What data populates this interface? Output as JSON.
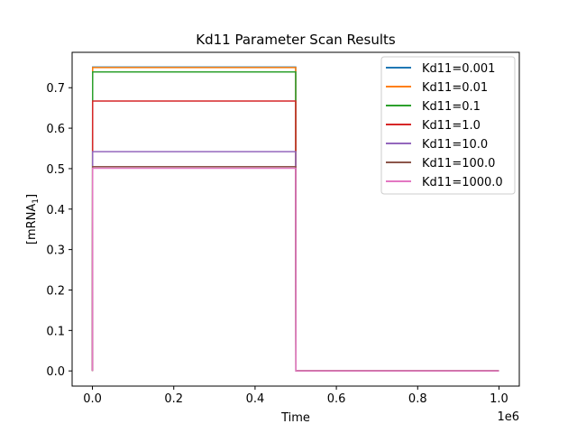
{
  "chart_data": {
    "type": "line",
    "title": "Kd11 Parameter Scan Results",
    "xlabel": "Time",
    "ylabel": "[mRNA",
    "ylabel_subscript": "1",
    "ylabel_suffix": "]",
    "x_offset_label": "1e6",
    "xlim": [
      -0.05,
      1.05
    ],
    "ylim": [
      -0.0375,
      0.7875
    ],
    "x_ticks": [
      0.0,
      0.2,
      0.4,
      0.6,
      0.8,
      1.0
    ],
    "x_tick_labels": [
      "0.0",
      "0.2",
      "0.4",
      "0.6",
      "0.8",
      "1.0"
    ],
    "y_ticks": [
      0.0,
      0.1,
      0.2,
      0.3,
      0.4,
      0.5,
      0.6,
      0.7
    ],
    "y_tick_labels": [
      "0.0",
      "0.1",
      "0.2",
      "0.3",
      "0.4",
      "0.5",
      "0.6",
      "0.7"
    ],
    "grid": false,
    "legend_position": "top-right",
    "series": [
      {
        "name": "Kd11=0.001",
        "color": "#1f77b4",
        "x": [
          0,
          0.0005,
          0.5,
          0.5005,
          1.0
        ],
        "values": [
          0,
          0.751,
          0.751,
          0,
          0
        ]
      },
      {
        "name": "Kd11=0.01",
        "color": "#ff7f0e",
        "x": [
          0,
          0.0005,
          0.5,
          0.5005,
          1.0
        ],
        "values": [
          0,
          0.75,
          0.75,
          0,
          0
        ]
      },
      {
        "name": "Kd11=0.1",
        "color": "#2ca02c",
        "x": [
          0,
          0.0005,
          0.5,
          0.5005,
          1.0
        ],
        "values": [
          0,
          0.739,
          0.739,
          0,
          0
        ]
      },
      {
        "name": "Kd11=1.0",
        "color": "#d62728",
        "x": [
          0,
          0.0005,
          0.5,
          0.5005,
          1.0
        ],
        "values": [
          0,
          0.667,
          0.667,
          0,
          0
        ]
      },
      {
        "name": "Kd11=10.0",
        "color": "#9467bd",
        "x": [
          0,
          0.0005,
          0.5,
          0.5005,
          1.0
        ],
        "values": [
          0,
          0.542,
          0.542,
          0,
          0
        ]
      },
      {
        "name": "Kd11=100.0",
        "color": "#8c564b",
        "x": [
          0,
          0.0005,
          0.5,
          0.5005,
          1.0
        ],
        "values": [
          0,
          0.505,
          0.505,
          0,
          0
        ]
      },
      {
        "name": "Kd11=1000.0",
        "color": "#e377c2",
        "x": [
          0,
          0.0005,
          0.5,
          0.5005,
          1.0
        ],
        "values": [
          0,
          0.501,
          0.501,
          0,
          0
        ]
      }
    ]
  }
}
